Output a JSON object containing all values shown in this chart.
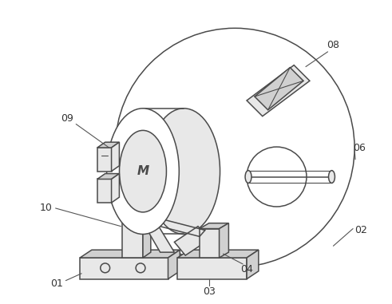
{
  "bg_color": "#ffffff",
  "line_color": "#4a4a4a",
  "lw": 1.1,
  "fig_width": 4.91,
  "fig_height": 3.81,
  "dpi": 100
}
